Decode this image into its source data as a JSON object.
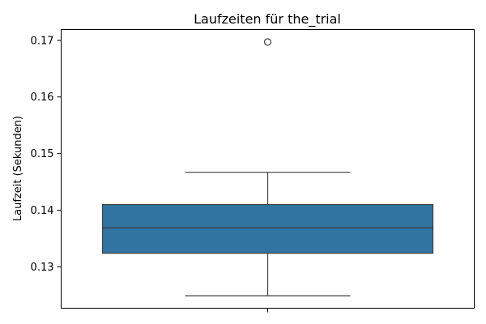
{
  "chart_data": {
    "type": "box",
    "title": "Laufzeiten für the_trial",
    "xlabel": "",
    "ylabel": "Laufzeit (Sekunden)",
    "ylim": [
      0.1227,
      0.1719
    ],
    "yticks": [
      0.13,
      0.14,
      0.15,
      0.16,
      0.17
    ],
    "ytick_labels": [
      "0.13",
      "0.14",
      "0.15",
      "0.16",
      "0.17"
    ],
    "grid": false,
    "box": {
      "whisker_low": 0.1249,
      "q1": 0.1324,
      "median": 0.1369,
      "q3": 0.141,
      "whisker_high": 0.1467,
      "outliers": [
        0.1697
      ]
    },
    "colors": {
      "box_fill": "#3274a1",
      "line": "#3f3f3f"
    }
  }
}
